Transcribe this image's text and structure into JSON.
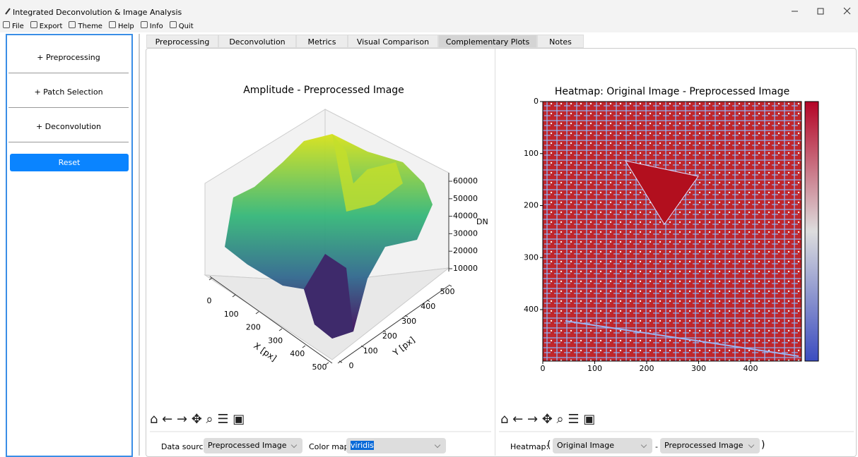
{
  "window": {
    "title": "Integrated Deconvolution & Image Analysis"
  },
  "menu": [
    "File",
    "Export",
    "Theme",
    "Help",
    "Info",
    "Quit"
  ],
  "sidebar": {
    "sections": [
      "+ Preprocessing",
      "+ Patch Selection",
      "+ Deconvolution"
    ],
    "reset": "Reset"
  },
  "tabs": {
    "items": [
      "Preprocessing",
      "Deconvolution",
      "Metrics",
      "Visual Comparison",
      "Complementary Plots",
      "Notes"
    ],
    "active": 4
  },
  "plot3d": {
    "title": "Amplitude - Preprocessed Image",
    "x_label": "X [px]",
    "y_label": "Y [px]",
    "z_label": "DN",
    "x_ticks": [
      0,
      100,
      200,
      300,
      400,
      500
    ],
    "y_ticks": [
      0,
      100,
      200,
      300,
      400,
      500
    ],
    "z_ticks": [
      10000,
      20000,
      30000,
      40000,
      50000,
      60000
    ]
  },
  "heatmap": {
    "title": "Heatmap: Original Image - Preprocessed Image",
    "x_ticks": [
      0,
      100,
      200,
      300,
      400
    ],
    "y_ticks": [
      0,
      100,
      200,
      300,
      400
    ]
  },
  "controls_left": {
    "data_source_label": "Data source:",
    "data_source": "Preprocessed Image",
    "color_map_label": "Color map:",
    "color_map": "viridis"
  },
  "controls_right": {
    "label": "Heatmap:",
    "open": "(",
    "first": "Original Image",
    "dash": "-",
    "second": "Preprocessed Image",
    "close": ")"
  }
}
